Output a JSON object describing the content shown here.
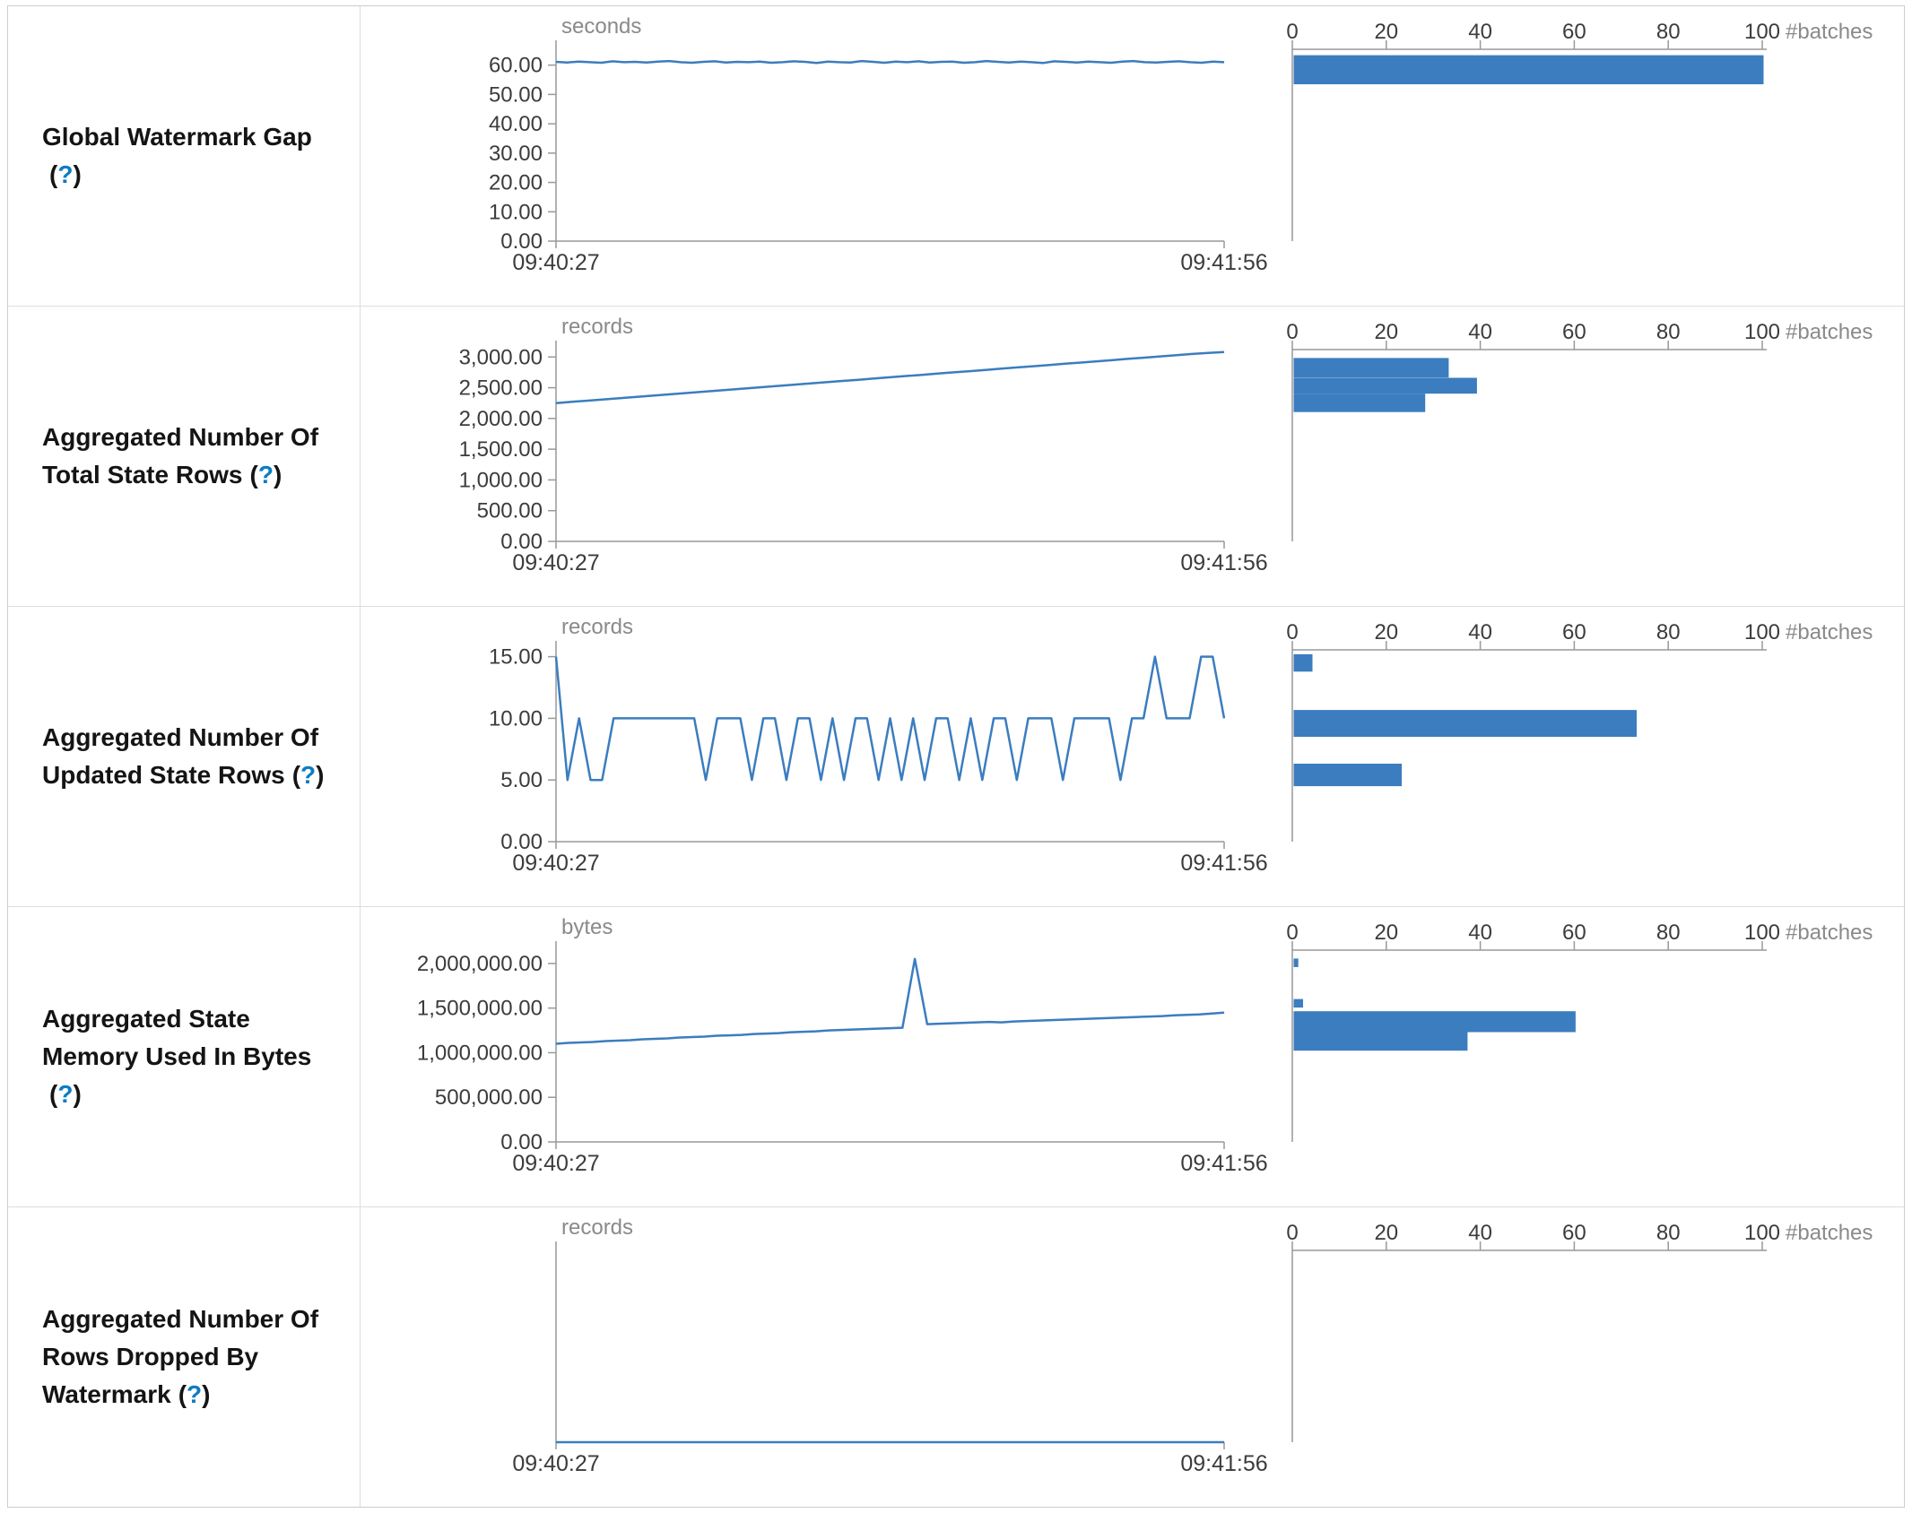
{
  "help": {
    "open": "(",
    "icon": "?",
    "close": ")"
  },
  "theme": {
    "series": "#3b7dbf",
    "bar": "#3b7dbf",
    "axis": "#999999",
    "tick_text": "#3c3c3c",
    "unit_text": "#8a8a8a",
    "help": "#0b7cc4",
    "label_text": "#141414",
    "border": "#dddddd"
  },
  "chart_data": [
    {
      "label": "Global Watermark Gap",
      "timeline": {
        "type": "line",
        "unit": "seconds",
        "ylabel": "seconds",
        "ymax": 66,
        "yticks": [
          {
            "v": 60,
            "label": "60.00"
          },
          {
            "v": 50,
            "label": "50.00"
          },
          {
            "v": 40,
            "label": "40.00"
          },
          {
            "v": 30,
            "label": "30.00"
          },
          {
            "v": 20,
            "label": "20.00"
          },
          {
            "v": 10,
            "label": "10.00"
          },
          {
            "v": 0,
            "label": "0.00"
          }
        ],
        "x_labels": [
          "09:40:27",
          "09:41:56"
        ],
        "values": [
          61.1,
          60.9,
          61.2,
          61.0,
          60.8,
          61.3,
          61.0,
          61.1,
          60.9,
          61.2,
          61.4,
          61.0,
          60.8,
          61.1,
          61.3,
          60.9,
          61.1,
          61.0,
          61.2,
          60.8,
          61.0,
          61.3,
          61.1,
          60.7,
          61.2,
          61.0,
          60.9,
          61.4,
          61.1,
          60.8,
          61.2,
          61.0,
          61.3,
          60.9,
          61.1,
          61.2,
          60.8,
          61.0,
          61.4,
          61.1,
          60.9,
          61.2,
          61.0,
          60.7,
          61.3,
          61.1,
          60.9,
          61.2,
          61.0,
          60.8,
          61.2,
          61.4,
          61.0,
          60.9,
          61.1,
          61.3,
          61.0,
          60.8,
          61.2,
          61.0
        ]
      },
      "histogram": {
        "type": "bar",
        "orientation": "horizontal",
        "xlabel": "#batches",
        "xmax": 100,
        "xticks": [
          {
            "v": 0,
            "label": "0"
          },
          {
            "v": 20,
            "label": "20"
          },
          {
            "v": 40,
            "label": "40"
          },
          {
            "v": 60,
            "label": "60"
          },
          {
            "v": 80,
            "label": "80"
          },
          {
            "v": 100,
            "label": "100"
          }
        ],
        "bars": [
          {
            "value": 100,
            "top": 0.04,
            "h": 0.15
          }
        ]
      }
    },
    {
      "label": "Aggregated Number Of Total State Rows",
      "timeline": {
        "type": "line",
        "unit": "records",
        "ylabel": "records",
        "ymax": 3150,
        "yticks": [
          {
            "v": 3000,
            "label": "3,000.00"
          },
          {
            "v": 2500,
            "label": "2,500.00"
          },
          {
            "v": 2000,
            "label": "2,000.00"
          },
          {
            "v": 1500,
            "label": "1,500.00"
          },
          {
            "v": 1000,
            "label": "1,000.00"
          },
          {
            "v": 500,
            "label": "500.00"
          },
          {
            "v": 0,
            "label": "0.00"
          }
        ],
        "x_labels": [
          "09:40:27",
          "09:41:56"
        ],
        "values": [
          2250,
          2270,
          2290,
          2310,
          2330,
          2350,
          2370,
          2390,
          2410,
          2430,
          2450,
          2470,
          2490,
          2510,
          2530,
          2550,
          2570,
          2590,
          2610,
          2630,
          2650,
          2670,
          2690,
          2710,
          2730,
          2750,
          2770,
          2790,
          2810,
          2830,
          2850,
          2870,
          2890,
          2910,
          2930,
          2950,
          2970,
          2990,
          3010,
          3030,
          3050,
          3065,
          3080
        ]
      },
      "histogram": {
        "type": "bar",
        "orientation": "horizontal",
        "xlabel": "#batches",
        "xmax": 100,
        "xticks": [
          {
            "v": 0,
            "label": "0"
          },
          {
            "v": 20,
            "label": "20"
          },
          {
            "v": 40,
            "label": "40"
          },
          {
            "v": 60,
            "label": "60"
          },
          {
            "v": 80,
            "label": "80"
          },
          {
            "v": 100,
            "label": "100"
          }
        ],
        "bars": [
          {
            "value": 33,
            "top": 0.053,
            "h": 0.101
          },
          {
            "value": 39,
            "top": 0.155,
            "h": 0.082
          },
          {
            "value": 28,
            "top": 0.237,
            "h": 0.095
          }
        ]
      }
    },
    {
      "label": "Aggregated Number Of Updated State Rows",
      "timeline": {
        "type": "line",
        "unit": "records",
        "ylabel": "records",
        "ymax": 15.7,
        "yticks": [
          {
            "v": 15,
            "label": "15.00"
          },
          {
            "v": 10,
            "label": "10.00"
          },
          {
            "v": 5,
            "label": "5.00"
          },
          {
            "v": 0,
            "label": "0.00"
          }
        ],
        "x_labels": [
          "09:40:27",
          "09:41:56"
        ],
        "values": [
          15,
          5,
          10,
          5,
          5,
          10,
          10,
          10,
          10,
          10,
          10,
          10,
          10,
          5,
          10,
          10,
          10,
          5,
          10,
          10,
          5,
          10,
          10,
          5,
          10,
          5,
          10,
          10,
          5,
          10,
          5,
          10,
          5,
          10,
          10,
          5,
          10,
          5,
          10,
          10,
          5,
          10,
          10,
          10,
          5,
          10,
          10,
          10,
          10,
          5,
          10,
          10,
          15,
          10,
          10,
          10,
          15,
          15,
          10
        ]
      },
      "histogram": {
        "type": "bar",
        "orientation": "horizontal",
        "xlabel": "#batches",
        "xmax": 100,
        "xticks": [
          {
            "v": 0,
            "label": "0"
          },
          {
            "v": 20,
            "label": "20"
          },
          {
            "v": 40,
            "label": "40"
          },
          {
            "v": 60,
            "label": "60"
          },
          {
            "v": 80,
            "label": "80"
          },
          {
            "v": 100,
            "label": "100"
          }
        ],
        "bars": [
          {
            "value": 4,
            "top": 0.032,
            "h": 0.09
          },
          {
            "value": 73,
            "top": 0.32,
            "h": 0.139
          },
          {
            "value": 23,
            "top": 0.597,
            "h": 0.116
          }
        ]
      }
    },
    {
      "label": "Aggregated State Memory Used In Bytes",
      "timeline": {
        "type": "line",
        "unit": "bytes",
        "ylabel": "bytes",
        "ymax": 2170000,
        "yticks": [
          {
            "v": 2000000,
            "label": "2,000,000.00"
          },
          {
            "v": 1500000,
            "label": "1,500,000.00"
          },
          {
            "v": 1000000,
            "label": "1,000,000.00"
          },
          {
            "v": 500000,
            "label": "500,000.00"
          },
          {
            "v": 0,
            "label": "0.00"
          }
        ],
        "x_labels": [
          "09:40:27",
          "09:41:56"
        ],
        "values": [
          1100000,
          1110000,
          1115000,
          1120000,
          1130000,
          1135000,
          1140000,
          1150000,
          1155000,
          1160000,
          1170000,
          1175000,
          1180000,
          1190000,
          1195000,
          1200000,
          1210000,
          1215000,
          1220000,
          1230000,
          1235000,
          1240000,
          1250000,
          1255000,
          1260000,
          1265000,
          1270000,
          1275000,
          1280000,
          2050000,
          1320000,
          1325000,
          1330000,
          1335000,
          1340000,
          1345000,
          1340000,
          1350000,
          1355000,
          1360000,
          1365000,
          1370000,
          1375000,
          1380000,
          1385000,
          1390000,
          1395000,
          1400000,
          1405000,
          1410000,
          1420000,
          1425000,
          1430000,
          1440000,
          1450000
        ]
      },
      "histogram": {
        "type": "bar",
        "orientation": "horizontal",
        "xlabel": "#batches",
        "xmax": 100,
        "xticks": [
          {
            "v": 0,
            "label": "0"
          },
          {
            "v": 20,
            "label": "20"
          },
          {
            "v": 40,
            "label": "40"
          },
          {
            "v": 60,
            "label": "60"
          },
          {
            "v": 80,
            "label": "80"
          },
          {
            "v": 100,
            "label": "100"
          }
        ],
        "bars": [
          {
            "value": 1,
            "top": 0.053,
            "h": 0.044
          },
          {
            "value": 2,
            "top": 0.262,
            "h": 0.044
          },
          {
            "value": 60,
            "top": 0.325,
            "h": 0.108
          },
          {
            "value": 37,
            "top": 0.433,
            "h": 0.096
          }
        ]
      }
    },
    {
      "label": "Aggregated Number Of Rows Dropped By Watermark",
      "timeline": {
        "type": "line",
        "unit": "records",
        "ylabel": "records",
        "ymax": 1,
        "yticks": [],
        "x_labels": [
          "09:40:27",
          "09:41:56"
        ],
        "values": [
          0,
          0,
          0,
          0,
          0,
          0,
          0,
          0,
          0,
          0
        ]
      },
      "histogram": {
        "type": "bar",
        "orientation": "horizontal",
        "xlabel": "#batches",
        "xmax": 100,
        "xticks": [
          {
            "v": 0,
            "label": "0"
          },
          {
            "v": 20,
            "label": "20"
          },
          {
            "v": 40,
            "label": "40"
          },
          {
            "v": 60,
            "label": "60"
          },
          {
            "v": 80,
            "label": "80"
          },
          {
            "v": 100,
            "label": "100"
          }
        ],
        "bars": []
      }
    }
  ]
}
